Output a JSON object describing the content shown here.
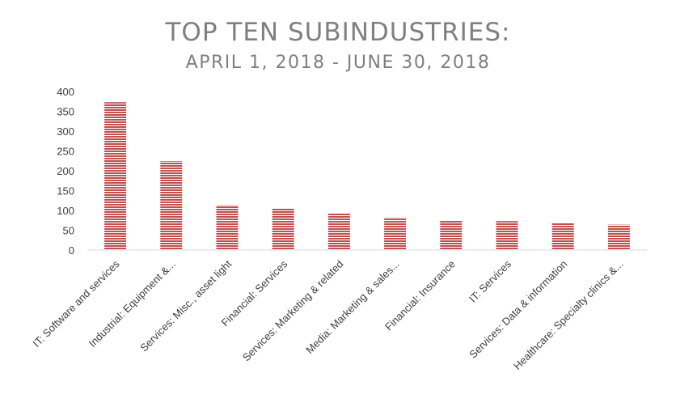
{
  "chart_data": {
    "type": "bar",
    "title": "TOP TEN SUBINDUSTRIES:",
    "subtitle": "APRIL 1, 2018 - JUNE 30, 2018",
    "xlabel": "",
    "ylabel": "",
    "ylim": [
      0,
      400
    ],
    "yticks": [
      "0",
      "50",
      "100",
      "150",
      "200",
      "250",
      "300",
      "350",
      "400"
    ],
    "grid": false,
    "legend": "none",
    "bar_color": "#c0504d",
    "stripe_color": "#ffffff",
    "categories": [
      "IT: Software and services",
      "Industrial: Equipment &...",
      "Services: Misc., asset light",
      "Financial: Services",
      "Services: Marketing & related",
      "Media: Marketing & sales...",
      "Financial: Insurance",
      "IT: Services",
      "Services: Data & information",
      "Healthcare: Specialty clinics &..."
    ],
    "values": [
      373,
      224,
      113,
      106,
      92,
      82,
      75,
      73,
      68,
      64
    ]
  }
}
